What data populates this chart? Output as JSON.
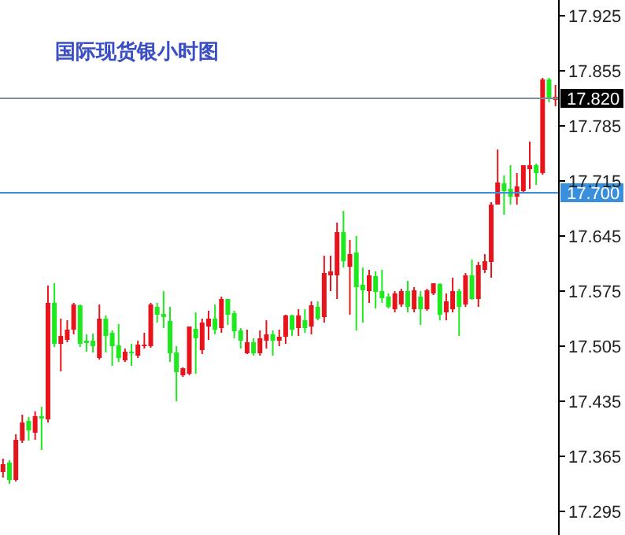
{
  "chart_data": {
    "type": "candlestick",
    "title": "国际现货银小时图",
    "categories": [
      null,
      null,
      null,
      null,
      null,
      null,
      null,
      null,
      null,
      null,
      null,
      null,
      null,
      null,
      null,
      null,
      null,
      null,
      null,
      null,
      null,
      null,
      null,
      null,
      null,
      null,
      null,
      null,
      null,
      null,
      null,
      null,
      null,
      null,
      null,
      null,
      null,
      null,
      null,
      null,
      null,
      null,
      null,
      null,
      null,
      null,
      null,
      null,
      null,
      null,
      null,
      null,
      null,
      null,
      null,
      null,
      null,
      null,
      null,
      null,
      null,
      null,
      null,
      null,
      null,
      null,
      null,
      null,
      null,
      null,
      null,
      null,
      null,
      null,
      null,
      null,
      null,
      null,
      null,
      null,
      null,
      null,
      null,
      null,
      null,
      null,
      null
    ],
    "ohlc": [
      [
        17.345,
        17.362,
        17.338,
        17.355
      ],
      [
        17.357,
        17.36,
        17.33,
        17.335
      ],
      [
        17.335,
        17.393,
        17.333,
        17.386
      ],
      [
        17.385,
        17.418,
        17.382,
        17.408
      ],
      [
        17.41,
        17.415,
        17.385,
        17.398
      ],
      [
        17.395,
        17.422,
        17.386,
        17.416
      ],
      [
        17.416,
        17.428,
        17.373,
        17.413
      ],
      [
        17.412,
        17.582,
        17.408,
        17.56
      ],
      [
        17.56,
        17.585,
        17.504,
        17.508
      ],
      [
        17.508,
        17.54,
        17.473,
        17.518
      ],
      [
        17.513,
        17.538,
        17.51,
        17.526
      ],
      [
        17.526,
        17.56,
        17.52,
        17.558
      ],
      [
        17.557,
        17.558,
        17.504,
        17.508
      ],
      [
        17.512,
        17.52,
        17.498,
        17.509
      ],
      [
        17.512,
        17.521,
        17.497,
        17.505
      ],
      [
        17.49,
        17.558,
        17.488,
        17.54
      ],
      [
        17.54,
        17.544,
        17.497,
        17.518
      ],
      [
        17.522,
        17.525,
        17.48,
        17.505
      ],
      [
        17.506,
        17.533,
        17.485,
        17.49
      ],
      [
        17.487,
        17.502,
        17.485,
        17.498
      ],
      [
        17.498,
        17.508,
        17.48,
        17.496
      ],
      [
        17.493,
        17.512,
        17.49,
        17.507
      ],
      [
        17.505,
        17.522,
        17.502,
        17.507
      ],
      [
        17.505,
        17.56,
        17.503,
        17.558
      ],
      [
        17.555,
        17.56,
        17.535,
        17.545
      ],
      [
        17.546,
        17.575,
        17.528,
        17.542
      ],
      [
        17.537,
        17.555,
        17.485,
        17.496
      ],
      [
        17.497,
        17.505,
        17.435,
        17.472
      ],
      [
        17.468,
        17.478,
        17.466,
        17.477
      ],
      [
        17.47,
        17.53,
        17.468,
        17.53
      ],
      [
        17.527,
        17.548,
        17.47,
        17.515
      ],
      [
        17.5,
        17.54,
        17.495,
        17.535
      ],
      [
        17.53,
        17.55,
        17.513,
        17.54
      ],
      [
        17.54,
        17.558,
        17.52,
        17.526
      ],
      [
        17.528,
        17.568,
        17.522,
        17.565
      ],
      [
        17.565,
        17.565,
        17.532,
        17.545
      ],
      [
        17.547,
        17.55,
        17.515,
        17.524
      ],
      [
        17.525,
        17.528,
        17.502,
        17.512
      ],
      [
        17.496,
        17.526,
        17.495,
        17.51
      ],
      [
        17.51,
        17.515,
        17.493,
        17.496
      ],
      [
        17.496,
        17.525,
        17.493,
        17.515
      ],
      [
        17.512,
        17.538,
        17.502,
        17.52
      ],
      [
        17.52,
        17.525,
        17.493,
        17.512
      ],
      [
        17.512,
        17.526,
        17.505,
        17.517
      ],
      [
        17.517,
        17.545,
        17.508,
        17.544
      ],
      [
        17.544,
        17.545,
        17.518,
        17.526
      ],
      [
        17.528,
        17.552,
        17.518,
        17.544
      ],
      [
        17.538,
        17.552,
        17.522,
        17.528
      ],
      [
        17.53,
        17.562,
        17.52,
        17.557
      ],
      [
        17.555,
        17.562,
        17.538,
        17.54
      ],
      [
        17.542,
        17.62,
        17.535,
        17.598
      ],
      [
        17.595,
        17.62,
        17.575,
        17.6
      ],
      [
        17.595,
        17.662,
        17.565,
        17.65
      ],
      [
        17.65,
        17.677,
        17.605,
        17.613
      ],
      [
        17.606,
        17.64,
        17.545,
        17.622
      ],
      [
        17.624,
        17.645,
        17.525,
        17.58
      ],
      [
        17.583,
        17.605,
        17.535,
        17.576
      ],
      [
        17.575,
        17.602,
        17.56,
        17.595
      ],
      [
        17.594,
        17.6,
        17.553,
        17.574
      ],
      [
        17.575,
        17.602,
        17.56,
        17.566
      ],
      [
        17.568,
        17.572,
        17.553,
        17.555
      ],
      [
        17.552,
        17.575,
        17.548,
        17.572
      ],
      [
        17.558,
        17.578,
        17.555,
        17.575
      ],
      [
        17.575,
        17.588,
        17.548,
        17.555
      ],
      [
        17.552,
        17.58,
        17.548,
        17.576
      ],
      [
        17.568,
        17.575,
        17.532,
        17.552
      ],
      [
        17.552,
        17.578,
        17.55,
        17.576
      ],
      [
        17.572,
        17.585,
        17.57,
        17.585
      ],
      [
        17.584,
        17.585,
        17.538,
        17.545
      ],
      [
        17.548,
        17.572,
        17.538,
        17.562
      ],
      [
        17.552,
        17.592,
        17.548,
        17.575
      ],
      [
        17.575,
        17.578,
        17.518,
        17.555
      ],
      [
        17.558,
        17.598,
        17.555,
        17.595
      ],
      [
        17.595,
        17.615,
        17.564,
        17.565
      ],
      [
        17.565,
        17.612,
        17.555,
        17.608
      ],
      [
        17.602,
        17.622,
        17.598,
        17.613
      ],
      [
        17.612,
        17.688,
        17.592,
        17.685
      ],
      [
        17.685,
        17.755,
        17.685,
        17.713
      ],
      [
        17.712,
        17.722,
        17.672,
        17.702
      ],
      [
        17.705,
        17.735,
        17.685,
        17.695
      ],
      [
        17.695,
        17.725,
        17.685,
        17.708
      ],
      [
        17.702,
        17.735,
        17.7,
        17.735
      ],
      [
        17.73,
        17.765,
        17.705,
        17.735
      ],
      [
        17.735,
        17.737,
        17.71,
        17.725
      ],
      [
        17.725,
        17.846,
        17.723,
        17.844
      ],
      [
        17.844,
        17.846,
        17.815,
        17.82
      ],
      [
        17.818,
        17.837,
        17.81,
        17.822
      ]
    ],
    "colors": [
      "#e8141b",
      "#1ee81e",
      "#e8141b",
      "#e8141b",
      "#1ee81e",
      "#e8141b",
      "#1ee81e",
      "#e8141b",
      "#1ee81e",
      "#e8141b",
      "#e8141b",
      "#e8141b",
      "#1ee81e",
      "#1ee81e",
      "#1ee81e",
      "#e8141b",
      "#1ee81e",
      "#1ee81e",
      "#1ee81e",
      "#e8141b",
      "#1ee81e",
      "#e8141b",
      "#e8141b",
      "#e8141b",
      "#1ee81e",
      "#1ee81e",
      "#1ee81e",
      "#1ee81e",
      "#e8141b",
      "#e8141b",
      "#1ee81e",
      "#e8141b",
      "#e8141b",
      "#1ee81e",
      "#e8141b",
      "#1ee81e",
      "#1ee81e",
      "#1ee81e",
      "#e8141b",
      "#1ee81e",
      "#e8141b",
      "#e8141b",
      "#1ee81e",
      "#e8141b",
      "#e8141b",
      "#1ee81e",
      "#e8141b",
      "#1ee81e",
      "#e8141b",
      "#1ee81e",
      "#e8141b",
      "#e8141b",
      "#e8141b",
      "#1ee81e",
      "#e8141b",
      "#1ee81e",
      "#1ee81e",
      "#e8141b",
      "#1ee81e",
      "#1ee81e",
      "#1ee81e",
      "#e8141b",
      "#e8141b",
      "#1ee81e",
      "#e8141b",
      "#1ee81e",
      "#e8141b",
      "#e8141b",
      "#1ee81e",
      "#e8141b",
      "#e8141b",
      "#1ee81e",
      "#e8141b",
      "#1ee81e",
      "#e8141b",
      "#e8141b",
      "#e8141b",
      "#e8141b",
      "#1ee81e",
      "#1ee81e",
      "#e8141b",
      "#e8141b",
      "#e8141b",
      "#1ee81e",
      "#e8141b",
      "#1ee81e",
      "#e8141b"
    ],
    "ylim": [
      17.265,
      17.945
    ],
    "yticks": [
      17.295,
      17.365,
      17.435,
      17.505,
      17.575,
      17.645,
      17.715,
      17.785,
      17.855,
      17.925
    ],
    "ref_lines": [
      {
        "axis": "y",
        "value": 17.82,
        "label": "17.820",
        "color": "#808c99"
      },
      {
        "axis": "y",
        "value": 17.7,
        "label": "17.700",
        "color": "#3a8fdc"
      }
    ],
    "tick_labels": "y"
  }
}
